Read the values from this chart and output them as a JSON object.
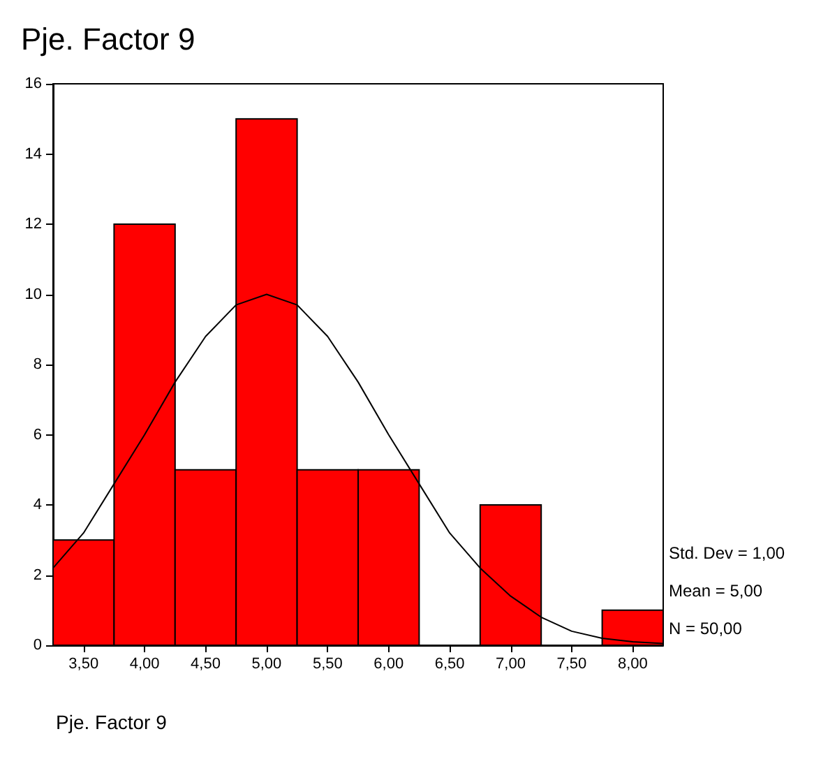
{
  "chart_data": {
    "type": "histogram",
    "title": "Pje. Factor 9",
    "xlabel": "Pje. Factor 9",
    "bins": [
      3.25,
      3.75,
      4.25,
      4.75,
      5.25,
      5.75,
      6.25,
      6.75,
      7.25,
      7.75,
      8.25
    ],
    "series": [
      {
        "color": "#ff0000",
        "values": [
          3,
          12,
          5,
          15,
          5,
          5,
          0,
          4,
          0,
          1
        ]
      },
      {
        "type": "line",
        "color": "#000000",
        "marker": "none",
        "x": [
          3.25,
          3.5,
          3.75,
          4,
          4.25,
          4.5,
          4.75,
          5,
          5.25,
          5.5,
          5.75,
          6,
          6.25,
          6.5,
          6.75,
          7,
          7.25,
          7.5,
          7.75,
          8,
          8.25
        ],
        "values": [
          2.2,
          3.2,
          4.6,
          6,
          7.5,
          8.8,
          9.7,
          10,
          9.7,
          8.8,
          7.5,
          6,
          4.6,
          3.2,
          2.2,
          1.4,
          0.8,
          0.4,
          0.2,
          0.1,
          0.05
        ]
      }
    ],
    "xlim": [
      3.25,
      8.25
    ],
    "xticks": [
      {
        "value": 3.5,
        "label": "3,50"
      },
      {
        "value": 4,
        "label": "4,00"
      },
      {
        "value": 4.5,
        "label": "4,50"
      },
      {
        "value": 5,
        "label": "5,00"
      },
      {
        "value": 5.5,
        "label": "5,50"
      },
      {
        "value": 6,
        "label": "6,00"
      },
      {
        "value": 6.5,
        "label": "6,50"
      },
      {
        "value": 7,
        "label": "7,00"
      },
      {
        "value": 7.5,
        "label": "7,50"
      },
      {
        "value": 8,
        "label": "8,00"
      }
    ],
    "ylim": [
      0,
      16
    ],
    "yticks": [
      0,
      2,
      4,
      6,
      8,
      10,
      12,
      14,
      16
    ],
    "grid": false,
    "annotations": [
      "Std. Dev = 1,00",
      "Mean = 5,00",
      "N = 50,00"
    ]
  }
}
